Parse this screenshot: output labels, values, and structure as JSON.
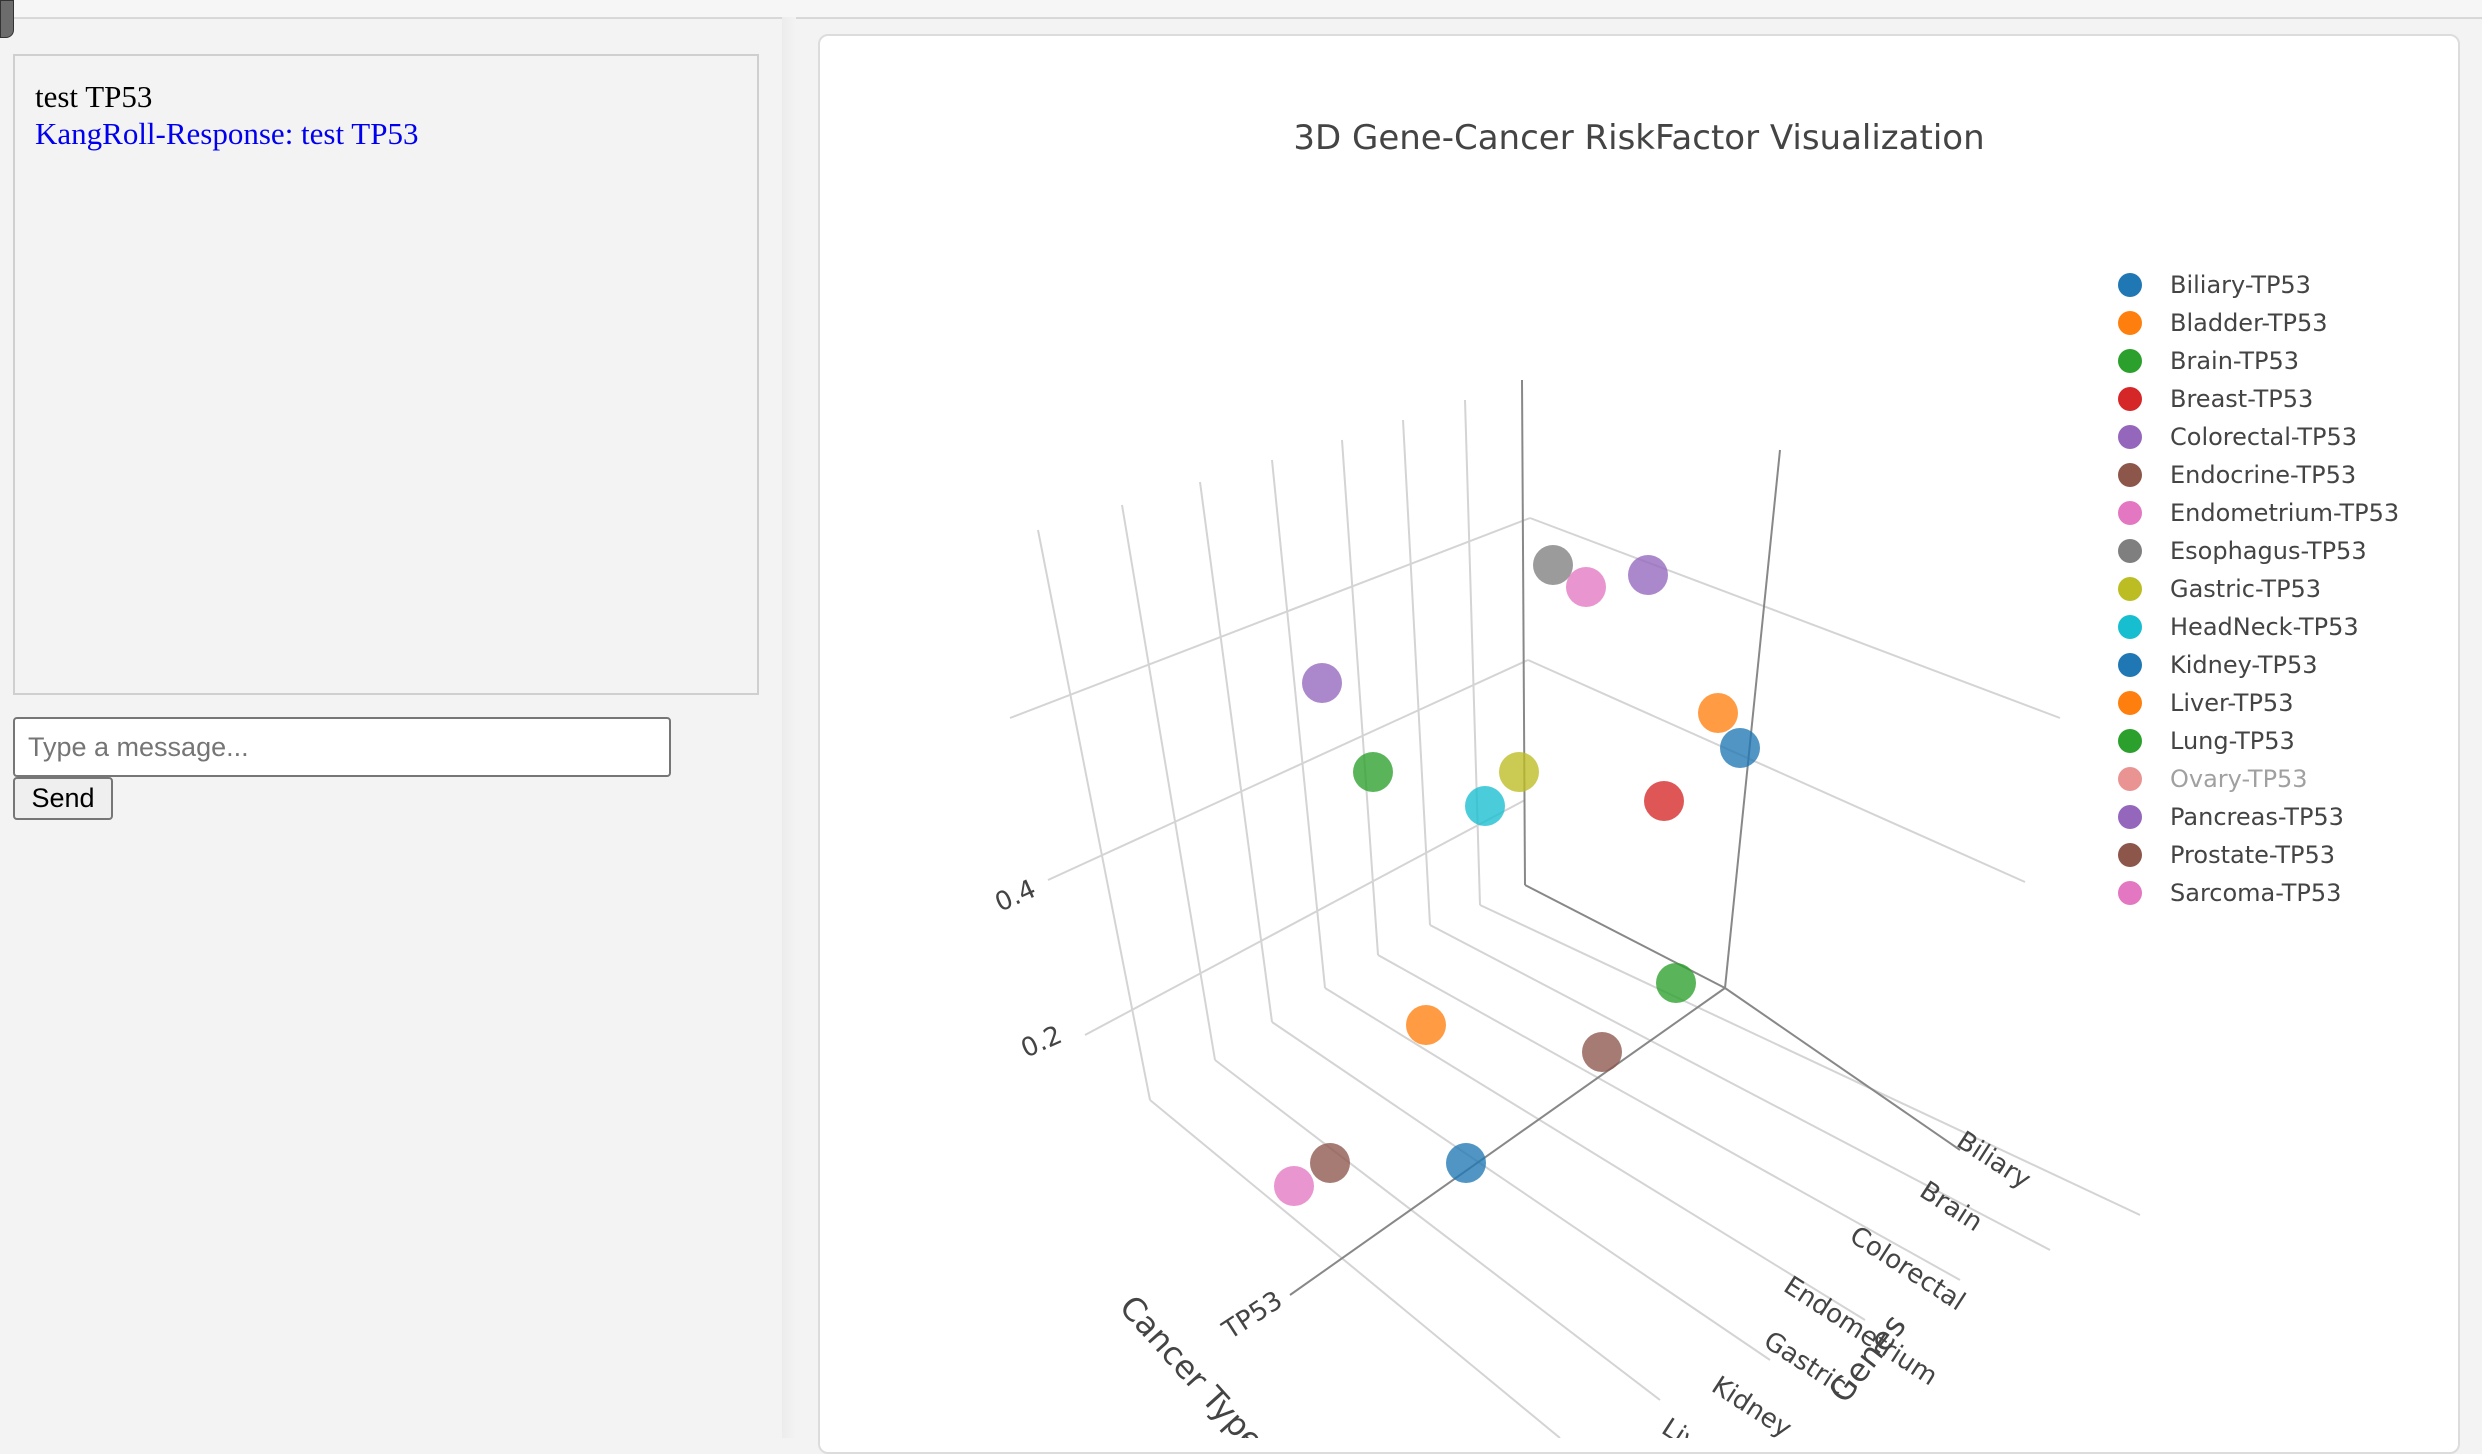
{
  "chat": {
    "messages": [
      {
        "role": "user",
        "text": "test TP53"
      },
      {
        "role": "bot",
        "text": "KangRoll-Response: test TP53"
      }
    ],
    "input_placeholder": "Type a message...",
    "input_value": "",
    "send_label": "Send"
  },
  "chart": {
    "title": "3D Gene-Cancer RiskFactor Visualization"
  },
  "chart_data": {
    "type": "scatter3d",
    "title": "3D Gene-Cancer RiskFactor Visualization",
    "xlabel": "Genes",
    "ylabel": "Cancer Types",
    "zlabel": "",
    "x_tick_labels": [
      "TP53"
    ],
    "y_tick_labels": [
      "Biliary",
      "Brain",
      "Colorectal",
      "Endometrium",
      "Gastric",
      "Kidney",
      "Liver"
    ],
    "z_tick_labels": [
      "0.2",
      "0.4"
    ],
    "legend_position": "right",
    "series": [
      {
        "name": "Biliary-TP53",
        "color": "#1f77b4",
        "visible": true
      },
      {
        "name": "Bladder-TP53",
        "color": "#ff7f0e",
        "visible": true
      },
      {
        "name": "Brain-TP53",
        "color": "#2ca02c",
        "visible": true
      },
      {
        "name": "Breast-TP53",
        "color": "#d62728",
        "visible": true
      },
      {
        "name": "Colorectal-TP53",
        "color": "#9467bd",
        "visible": true
      },
      {
        "name": "Endocrine-TP53",
        "color": "#8c564b",
        "visible": true
      },
      {
        "name": "Endometrium-TP53",
        "color": "#e377c2",
        "visible": true
      },
      {
        "name": "Esophagus-TP53",
        "color": "#7f7f7f",
        "visible": true
      },
      {
        "name": "Gastric-TP53",
        "color": "#bcbd22",
        "visible": true
      },
      {
        "name": "HeadNeck-TP53",
        "color": "#17becf",
        "visible": true
      },
      {
        "name": "Kidney-TP53",
        "color": "#1f77b4",
        "visible": true
      },
      {
        "name": "Liver-TP53",
        "color": "#ff7f0e",
        "visible": true
      },
      {
        "name": "Lung-TP53",
        "color": "#2ca02c",
        "visible": true
      },
      {
        "name": "Ovary-TP53",
        "color": "#d62728",
        "visible": false
      },
      {
        "name": "Pancreas-TP53",
        "color": "#9467bd",
        "visible": true
      },
      {
        "name": "Prostate-TP53",
        "color": "#8c564b",
        "visible": true
      },
      {
        "name": "Sarcoma-TP53",
        "color": "#e377c2",
        "visible": true
      }
    ]
  }
}
